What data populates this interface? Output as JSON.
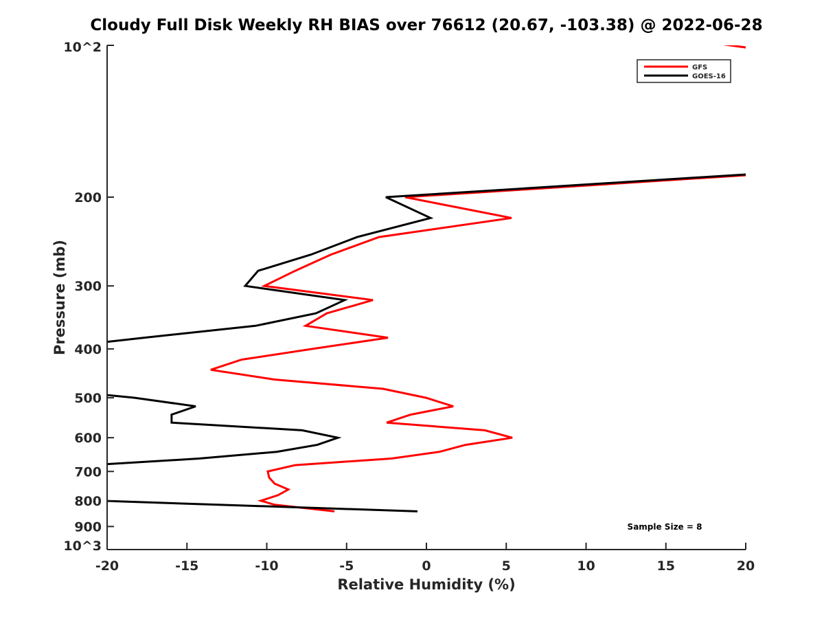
{
  "chart_data": {
    "type": "line",
    "title": "Cloudy Full Disk Weekly RH BIAS over 76612 (20.67, -103.38) @ 2022-06-28",
    "xlabel": "Relative Humidity (%)",
    "ylabel": "Pressure (mb)",
    "xlim": [
      -20,
      20
    ],
    "ylim": [
      100,
      1000
    ],
    "yscale": "log",
    "y_reversed": true,
    "grid": false,
    "xticks": [
      -20,
      -15,
      -10,
      -5,
      0,
      5,
      10,
      15,
      20
    ],
    "xtick_labels": [
      "-20",
      "-15",
      "-10",
      "-5",
      "0",
      "5",
      "10",
      "15",
      "20"
    ],
    "yticks": [
      100,
      200,
      300,
      400,
      500,
      600,
      700,
      800,
      900,
      1000
    ],
    "ytick_labels": [
      "10^2",
      "200",
      "300",
      "400",
      "500",
      "600",
      "700",
      "800",
      "900",
      "10^3"
    ],
    "legend": {
      "placement": "top-right",
      "entries": [
        "GFS",
        "GOES-16"
      ]
    },
    "annotation": "Sample Size = 8",
    "series": [
      {
        "name": "GFS",
        "color": "#ff0000",
        "pressure": [
          98,
          150,
          200,
          220,
          240,
          260,
          280,
          300,
          320,
          340,
          360,
          380,
          400,
          420,
          440,
          460,
          480,
          500,
          520,
          540,
          560,
          580,
          600,
          620,
          640,
          660,
          680,
          700,
          720,
          740,
          760,
          780,
          800,
          815,
          840
        ],
        "values": [
          17,
          60,
          -1.33,
          5.33,
          -2.97,
          -5.98,
          -8.22,
          -10.15,
          -3.35,
          -6.24,
          -7.57,
          -2.41,
          -7.14,
          -11.57,
          -13.51,
          -9.51,
          -2.71,
          -0.04,
          1.68,
          -0.99,
          -2.49,
          3.66,
          5.38,
          2.45,
          0.82,
          -2.19,
          -8.22,
          -9.94,
          -9.85,
          -9.51,
          -8.65,
          -9.29,
          -10.37,
          -9.51,
          -5.76
        ]
      },
      {
        "name": "GOES-16",
        "color": "#000000",
        "pressure": [
          150,
          200,
          220,
          240,
          260,
          280,
          300,
          320,
          340,
          360,
          380,
          400,
          480,
          500,
          520,
          540,
          560,
          580,
          600,
          620,
          640,
          660,
          680,
          800,
          840
        ],
        "values": [
          60,
          -2.54,
          0.26,
          -4.34,
          -7.23,
          -10.54,
          -11.35,
          -5.12,
          -6.92,
          -10.71,
          -17.68,
          -23.9,
          -24,
          -18.3,
          -14.45,
          -15.96,
          -15.96,
          -7.78,
          -5.55,
          -6.84,
          -9.38,
          -14.24,
          -21,
          -20.5,
          -0.56
        ]
      }
    ]
  }
}
